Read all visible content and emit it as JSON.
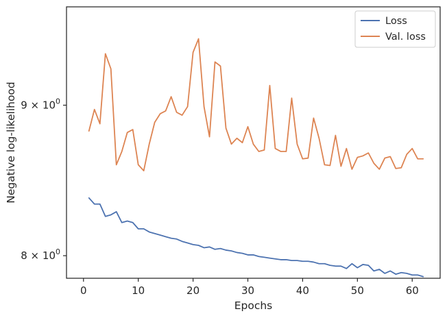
{
  "chart_data": {
    "type": "line",
    "title": "",
    "xlabel": "Epochs",
    "ylabel": "Negative log-likelihood",
    "yscale": "log",
    "xlim": [
      -3.1,
      65.1
    ],
    "ylim": [
      7.86,
      9.72
    ],
    "grid": false,
    "legend_position": "top-right",
    "x_ticks": [
      0,
      10,
      20,
      30,
      40,
      50,
      60
    ],
    "x_tick_labels": [
      "0",
      "10",
      "20",
      "30",
      "40",
      "50",
      "60"
    ],
    "y_ticks": [
      8,
      9
    ],
    "y_tick_base_labels": [
      "8 × 10",
      "9 × 10"
    ],
    "y_tick_exponent": "0",
    "x": [
      1,
      2,
      3,
      4,
      5,
      6,
      7,
      8,
      9,
      10,
      11,
      12,
      13,
      14,
      15,
      16,
      17,
      18,
      19,
      20,
      21,
      22,
      23,
      24,
      25,
      26,
      27,
      28,
      29,
      30,
      31,
      32,
      33,
      34,
      35,
      36,
      37,
      38,
      39,
      40,
      41,
      42,
      43,
      44,
      45,
      46,
      47,
      48,
      49,
      50,
      51,
      52,
      53,
      54,
      55,
      56,
      57,
      58,
      59,
      60,
      61,
      62
    ],
    "series": [
      {
        "name": "Loss",
        "color": "#4c72b0",
        "values": [
          8.37,
          8.33,
          8.33,
          8.25,
          8.26,
          8.28,
          8.21,
          8.22,
          8.21,
          8.17,
          8.17,
          8.15,
          8.14,
          8.13,
          8.12,
          8.11,
          8.105,
          8.09,
          8.08,
          8.07,
          8.065,
          8.05,
          8.055,
          8.04,
          8.045,
          8.035,
          8.03,
          8.02,
          8.015,
          8.005,
          8.005,
          7.995,
          7.99,
          7.985,
          7.98,
          7.975,
          7.975,
          7.97,
          7.97,
          7.965,
          7.965,
          7.96,
          7.95,
          7.95,
          7.94,
          7.935,
          7.935,
          7.92,
          7.95,
          7.925,
          7.945,
          7.94,
          7.905,
          7.915,
          7.89,
          7.905,
          7.885,
          7.895,
          7.89,
          7.88,
          7.88,
          7.87
        ]
      },
      {
        "name": "Val. loss",
        "color": "#dd8452",
        "values": [
          8.82,
          8.97,
          8.87,
          9.37,
          9.26,
          8.59,
          8.68,
          8.81,
          8.83,
          8.59,
          8.55,
          8.73,
          8.88,
          8.94,
          8.96,
          9.06,
          8.95,
          8.93,
          8.99,
          9.38,
          9.48,
          8.99,
          8.78,
          9.31,
          9.28,
          8.84,
          8.73,
          8.77,
          8.74,
          8.85,
          8.73,
          8.68,
          8.69,
          9.14,
          8.7,
          8.68,
          8.68,
          9.05,
          8.73,
          8.63,
          8.635,
          8.91,
          8.77,
          8.59,
          8.585,
          8.79,
          8.58,
          8.7,
          8.56,
          8.64,
          8.65,
          8.67,
          8.6,
          8.56,
          8.635,
          8.645,
          8.565,
          8.57,
          8.66,
          8.7,
          8.63,
          8.63
        ]
      }
    ]
  }
}
